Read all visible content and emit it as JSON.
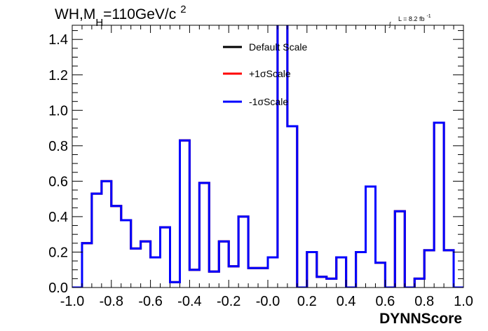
{
  "chart_data": {
    "type": "line",
    "title": {
      "main": "WH,M",
      "sub": "H",
      "rest": "=110GeV/c",
      "sup": "2"
    },
    "lumi": {
      "integral_sign": "∫",
      "text": "L = 8.2 fb",
      "sup": "-1"
    },
    "xlabel": "DYNNScore",
    "ylabel": "",
    "xlim": [
      -1.0,
      1.0
    ],
    "ylim": [
      0.0,
      1.48
    ],
    "x_ticks": [
      -1.0,
      -0.8,
      -0.6,
      -0.4,
      -0.2,
      0.0,
      0.2,
      0.4,
      0.6,
      0.8,
      1.0
    ],
    "x_tick_labels": [
      "-1.0",
      "-0.8",
      "-0.6",
      "-0.4",
      "-0.2",
      "-0.0",
      "0.2",
      "0.4",
      "0.6",
      "0.8",
      "1.0"
    ],
    "y_ticks": [
      0.0,
      0.2,
      0.4,
      0.6,
      0.8,
      1.0,
      1.2,
      1.4
    ],
    "y_tick_labels": [
      "0.0",
      "0.2",
      "0.4",
      "0.6",
      "0.8",
      "1.0",
      "1.2",
      "1.4"
    ],
    "bin_edges": [
      -1.0,
      -0.95,
      -0.9,
      -0.85,
      -0.8,
      -0.75,
      -0.7,
      -0.65,
      -0.6,
      -0.55,
      -0.5,
      -0.45,
      -0.4,
      -0.35,
      -0.3,
      -0.25,
      -0.2,
      -0.15,
      -0.1,
      -0.05,
      0.0,
      0.05,
      0.1,
      0.15,
      0.2,
      0.25,
      0.3,
      0.35,
      0.4,
      0.45,
      0.5,
      0.55,
      0.6,
      0.65,
      0.7,
      0.75,
      0.8,
      0.85,
      0.9,
      0.95,
      1.0
    ],
    "series": [
      {
        "name": "Default Scale",
        "color": "#000000",
        "values": [
          0.0,
          0.25,
          0.53,
          0.6,
          0.46,
          0.38,
          0.22,
          0.26,
          0.17,
          0.34,
          0.03,
          0.83,
          0.1,
          0.59,
          0.09,
          0.26,
          0.12,
          0.4,
          0.11,
          0.11,
          0.17,
          1.88,
          0.91,
          0.0,
          0.2,
          0.06,
          0.05,
          0.17,
          0.0,
          0.2,
          0.57,
          0.14,
          0.0,
          0.43,
          0.0,
          0.05,
          0.21,
          0.93,
          0.21,
          0.0
        ]
      },
      {
        "name": "+1σScale",
        "color": "#ff0000",
        "values": [
          0.0,
          0.25,
          0.53,
          0.6,
          0.46,
          0.38,
          0.22,
          0.26,
          0.17,
          0.34,
          0.03,
          0.83,
          0.1,
          0.59,
          0.09,
          0.26,
          0.12,
          0.4,
          0.11,
          0.11,
          0.17,
          1.88,
          0.91,
          0.0,
          0.2,
          0.06,
          0.05,
          0.17,
          0.0,
          0.2,
          0.57,
          0.14,
          0.0,
          0.43,
          0.0,
          0.05,
          0.21,
          0.93,
          0.21,
          0.0
        ]
      },
      {
        "name": "-1σScale",
        "color": "#0000ff",
        "values": [
          0.0,
          0.25,
          0.53,
          0.6,
          0.46,
          0.38,
          0.22,
          0.26,
          0.17,
          0.34,
          0.03,
          0.83,
          0.1,
          0.59,
          0.09,
          0.26,
          0.12,
          0.4,
          0.11,
          0.11,
          0.17,
          1.88,
          0.91,
          0.0,
          0.2,
          0.06,
          0.05,
          0.17,
          0.0,
          0.2,
          0.57,
          0.14,
          0.0,
          0.43,
          0.0,
          0.05,
          0.21,
          0.93,
          0.21,
          0.0
        ]
      }
    ],
    "legend": {
      "placement": "top-center",
      "entries": [
        "Default Scale",
        "+1σScale",
        "-1σScale"
      ]
    },
    "grid": false
  }
}
